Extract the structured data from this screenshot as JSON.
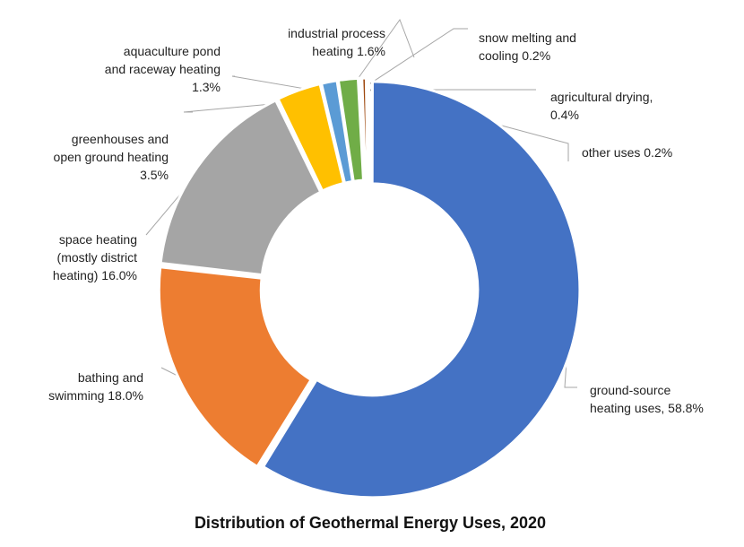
{
  "chart_data": {
    "type": "pie",
    "variant": "donut",
    "title": "Distribution of Geothermal Energy Uses, 2020",
    "legend": "none",
    "slices": [
      {
        "name": "ground-source heating uses",
        "value": 58.8,
        "color": "#4472c4",
        "label": [
          "ground-source",
          "heating uses, 58.8%"
        ]
      },
      {
        "name": "bathing and swimming",
        "value": 18.0,
        "color": "#ed7d31",
        "label": [
          "bathing and",
          "swimming  18.0%"
        ]
      },
      {
        "name": "space heating (mostly district heating)",
        "value": 16.0,
        "color": "#a5a5a5",
        "label": [
          "space heating",
          "(mostly district",
          "heating) 16.0%"
        ]
      },
      {
        "name": "greenhouses and open ground heating",
        "value": 3.5,
        "color": "#ffc000",
        "label": [
          "greenhouses and",
          "open ground heating",
          "3.5%"
        ]
      },
      {
        "name": "aquaculture pond and raceway heating",
        "value": 1.3,
        "color": "#5b9bd5",
        "label": [
          "aquaculture pond",
          "and raceway heating",
          "1.3%"
        ]
      },
      {
        "name": "industrial process heating",
        "value": 1.6,
        "color": "#70ad47",
        "label": [
          "industrial process",
          "heating  1.6%"
        ]
      },
      {
        "name": "snow melting and cooling",
        "value": 0.2,
        "color": "#264478",
        "label": [
          "snow melting and",
          "cooling  0.2%"
        ]
      },
      {
        "name": "agricultural drying",
        "value": 0.4,
        "color": "#9e480e",
        "label": [
          "agricultural drying,",
          "0.4%"
        ]
      },
      {
        "name": "other uses",
        "value": 0.2,
        "color": "#636363",
        "label": [
          "other uses  0.2%"
        ]
      }
    ]
  }
}
